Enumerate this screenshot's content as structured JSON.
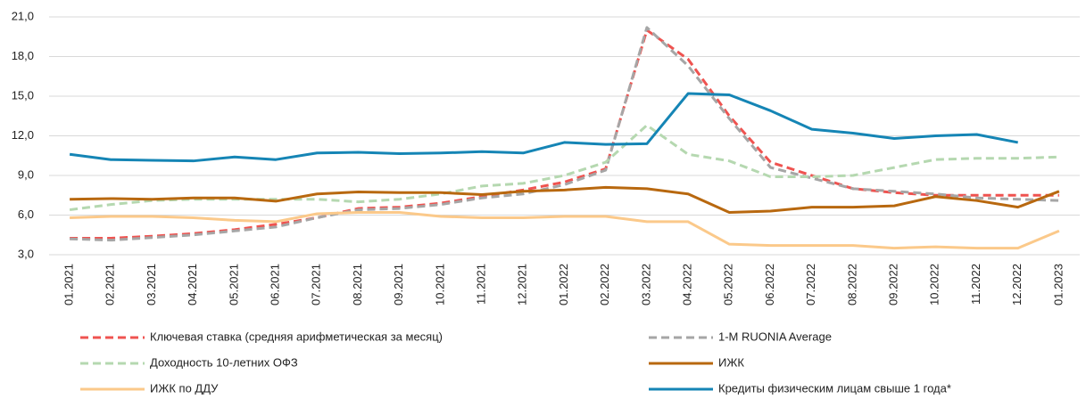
{
  "chart_data": {
    "type": "line",
    "categories": [
      "01.2021",
      "02.2021",
      "03.2021",
      "04.2021",
      "05.2021",
      "06.2021",
      "07.2021",
      "08.2021",
      "09.2021",
      "10.2021",
      "11.2021",
      "12.2021",
      "01.2022",
      "02.2022",
      "03.2022",
      "04.2022",
      "05.2022",
      "06.2022",
      "07.2022",
      "08.2022",
      "09.2022",
      "10.2022",
      "11.2022",
      "12.2022",
      "01.2023"
    ],
    "series": [
      {
        "name": "Ключевая ставка (средняя арифметическая за месяц)",
        "color": "#ef5350",
        "dashed": true,
        "values": [
          4.25,
          4.25,
          4.4,
          4.6,
          4.9,
          5.3,
          5.8,
          6.5,
          6.6,
          6.9,
          7.4,
          7.9,
          8.5,
          9.5,
          20.0,
          17.8,
          13.5,
          10.0,
          9.0,
          8.0,
          7.7,
          7.5,
          7.5,
          7.5,
          7.5
        ]
      },
      {
        "name": "1-M RUONIA Average",
        "color": "#a6a6a6",
        "dashed": true,
        "values": [
          4.2,
          4.1,
          4.3,
          4.5,
          4.8,
          5.1,
          5.8,
          6.4,
          6.5,
          6.8,
          7.3,
          7.6,
          8.3,
          9.4,
          20.2,
          17.3,
          13.3,
          9.6,
          8.8,
          8.0,
          7.8,
          7.6,
          7.3,
          7.2,
          7.1
        ]
      },
      {
        "name": "Доходность 10-летних ОФЗ",
        "color": "#b5d8b0",
        "dashed": true,
        "values": [
          6.4,
          6.8,
          7.1,
          7.2,
          7.2,
          7.2,
          7.2,
          7.0,
          7.2,
          7.6,
          8.2,
          8.4,
          9.0,
          10.0,
          12.8,
          10.6,
          10.1,
          8.9,
          8.9,
          9.0,
          9.6,
          10.2,
          10.3,
          10.3,
          10.4
        ]
      },
      {
        "name": "ИЖК",
        "color": "#b8680f",
        "dashed": false,
        "values": [
          7.2,
          7.25,
          7.2,
          7.3,
          7.3,
          7.05,
          7.6,
          7.75,
          7.7,
          7.7,
          7.55,
          7.8,
          7.9,
          8.1,
          8.0,
          7.6,
          6.2,
          6.3,
          6.6,
          6.6,
          6.7,
          7.4,
          7.1,
          6.6,
          7.8
        ]
      },
      {
        "name": "ИЖК по ДДУ",
        "color": "#fbc98a",
        "dashed": false,
        "values": [
          5.8,
          5.9,
          5.9,
          5.8,
          5.6,
          5.5,
          6.1,
          6.2,
          6.2,
          5.9,
          5.8,
          5.8,
          5.9,
          5.9,
          5.5,
          5.5,
          3.8,
          3.7,
          3.7,
          3.7,
          3.5,
          3.6,
          3.5,
          3.5,
          4.8
        ]
      },
      {
        "name": "Кредиты физическим лицам свыше 1 года*",
        "color": "#1585b5",
        "dashed": false,
        "values": [
          10.6,
          10.2,
          10.15,
          10.1,
          10.4,
          10.2,
          10.7,
          10.75,
          10.65,
          10.7,
          10.8,
          10.7,
          11.5,
          11.35,
          11.4,
          15.2,
          15.1,
          13.9,
          12.5,
          12.2,
          11.8,
          12.0,
          12.1,
          11.5,
          null
        ]
      }
    ],
    "ylim": [
      3,
      21
    ],
    "yticks": [
      {
        "value": 3,
        "label": "3,0"
      },
      {
        "value": 6,
        "label": "6,0"
      },
      {
        "value": 9,
        "label": "9,0"
      },
      {
        "value": 12,
        "label": "12,0"
      },
      {
        "value": 15,
        "label": "15,0"
      },
      {
        "value": 18,
        "label": "18,0"
      },
      {
        "value": 21,
        "label": "21,0"
      }
    ],
    "grid": true
  }
}
